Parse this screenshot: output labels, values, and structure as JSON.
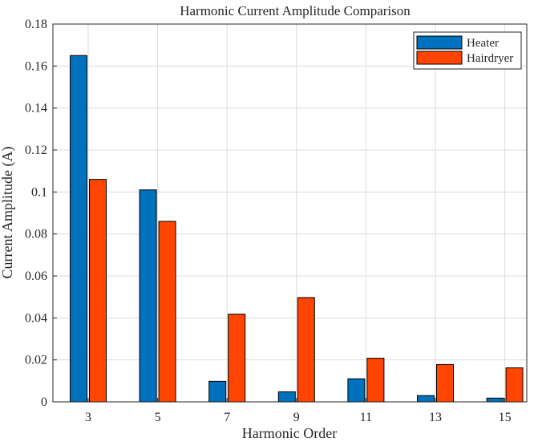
{
  "chart_data": {
    "type": "bar",
    "title": "Harmonic Current Amplitude Comparison",
    "xlabel": "Harmonic Order",
    "ylabel": "Current Amplitude (A)",
    "categories": [
      "3",
      "5",
      "7",
      "9",
      "11",
      "13",
      "15"
    ],
    "ylim": [
      0,
      0.18
    ],
    "yticks": [
      "0",
      "0.02",
      "0.04",
      "0.06",
      "0.08",
      "0.1",
      "0.12",
      "0.14",
      "0.16",
      "0.18"
    ],
    "ytick_values": [
      0,
      0.02,
      0.04,
      0.06,
      0.08,
      0.1,
      0.12,
      0.14,
      0.16,
      0.18
    ],
    "grid": true,
    "legend_position": "top-right",
    "series": [
      {
        "name": "Heater",
        "color": "#0072BD",
        "values": [
          0.165,
          0.101,
          0.0098,
          0.0048,
          0.011,
          0.003,
          0.0018
        ]
      },
      {
        "name": "Hairdryer",
        "color": "#FF4500",
        "values": [
          0.106,
          0.086,
          0.0418,
          0.0497,
          0.0208,
          0.0178,
          0.0162
        ]
      }
    ]
  }
}
